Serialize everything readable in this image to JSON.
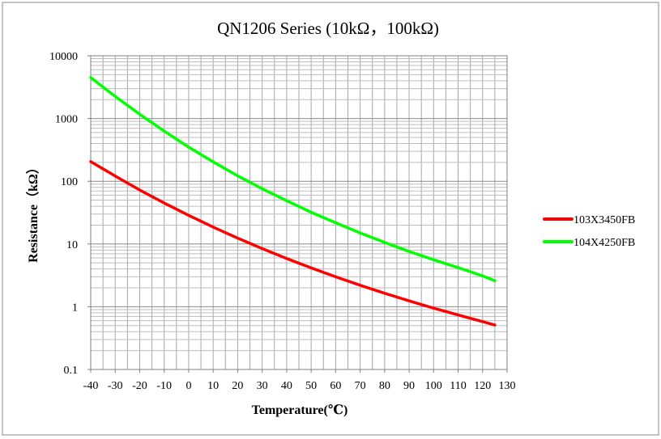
{
  "chart_data": {
    "type": "line",
    "title": "QN1206 Series (10kΩ，100kΩ)",
    "xlabel": "Temperature(℃)",
    "ylabel": "Resistance（kΩ）",
    "xlim": [
      -40,
      130
    ],
    "ylim": [
      0.1,
      10000
    ],
    "yscale": "log",
    "grid": true,
    "legend_position": "right",
    "x_ticks": [
      "-40",
      "-30",
      "-20",
      "-10",
      "0",
      "10",
      "20",
      "30",
      "40",
      "50",
      "60",
      "70",
      "80",
      "90",
      "100",
      "110",
      "120",
      "130"
    ],
    "y_ticks": [
      "0.1",
      "1",
      "10",
      "100",
      "1000",
      "10000"
    ],
    "x": [
      -40,
      -30,
      -20,
      -10,
      0,
      10,
      20,
      30,
      40,
      50,
      60,
      70,
      80,
      90,
      100,
      110,
      120,
      125
    ],
    "series": [
      {
        "name": "103X3450FB",
        "color": "#ff0000",
        "values": [
          206,
          121,
          72.5,
          45.0,
          28.6,
          18.6,
          12.4,
          8.45,
          5.87,
          4.16,
          3.0,
          2.2,
          1.64,
          1.24,
          0.95,
          0.74,
          0.58,
          0.51
        ]
      },
      {
        "name": "104X4250FB",
        "color": "#00ff00",
        "values": [
          4500,
          2250,
          1170,
          630,
          350,
          204,
          122,
          76,
          49,
          32,
          21.8,
          15.0,
          10.6,
          7.6,
          5.6,
          4.2,
          3.1,
          2.6
        ]
      }
    ]
  }
}
